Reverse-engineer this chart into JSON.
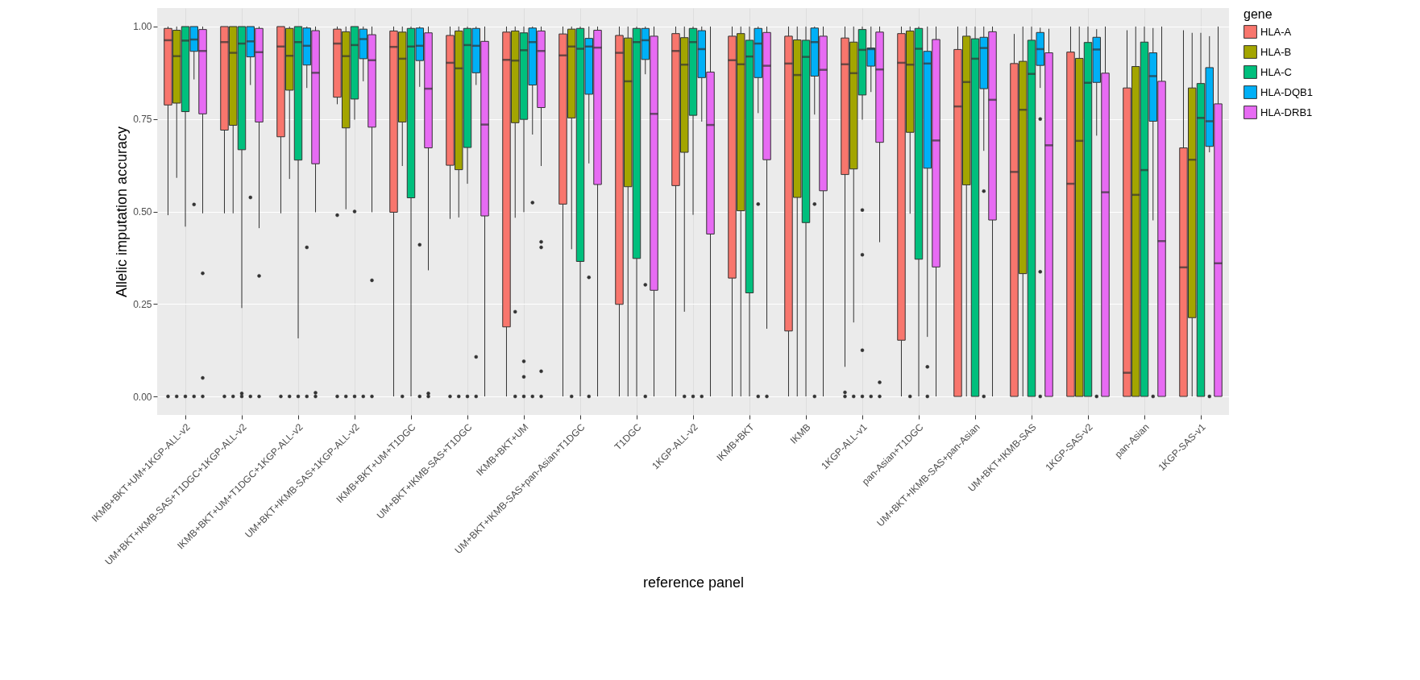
{
  "chart_data": {
    "type": "box",
    "xlabel": "reference panel",
    "ylabel": "Allelic imputation accuracy",
    "legend_title": "gene",
    "legend": "right",
    "grid": true,
    "ylim": [
      -0.05,
      1.05
    ],
    "yticks": [
      {
        "value": 0,
        "label": "0.00"
      },
      {
        "value": 0.25,
        "label": "0.25"
      },
      {
        "value": 0.5,
        "label": "0.50"
      },
      {
        "value": 0.75,
        "label": "0.75"
      },
      {
        "value": 1,
        "label": "1.00"
      }
    ],
    "categories": [
      "IKMB+BKT+UM+1KGP-ALL-v2",
      "UM+BKT+IKMB-SAS+T1DGC+1KGP-ALL-v2",
      "IKMB+BKT+UM+T1DGC+1KGP-ALL-v2",
      "UM+BKT+IKMB-SAS+1KGP-ALL-v2",
      "IKMB+BKT+UM+T1DGC",
      "UM+BKT+IKMB-SAS+T1DGC",
      "IKMB+BKT+UM",
      "UM+BKT+IKMB-SAS+pan-Asian+T1DGC",
      "T1DGC",
      "1KGP-ALL-v2",
      "IKMB+BKT",
      "IKMB",
      "1KGP-ALL-v1",
      "pan-Asian+T1DGC",
      "UM+BKT+IKMB-SAS+pan-Asian",
      "UM+BKT+IKMB-SAS",
      "1KGP-SAS-v2",
      "pan-Asian",
      "1KGP-SAS-v1"
    ],
    "series": [
      {
        "name": "HLA-A",
        "color": "#f8766d",
        "boxes": [
          {
            "low": 0.49,
            "q1": 0.788,
            "median": 0.963,
            "q3": 0.995,
            "high": 1,
            "outliers": [
              0
            ]
          },
          {
            "low": 0.495,
            "q1": 0.72,
            "median": 0.958,
            "q3": 1,
            "high": 1,
            "outliers": [
              0
            ]
          },
          {
            "low": 0.495,
            "q1": 0.702,
            "median": 0.946,
            "q3": 1,
            "high": 1,
            "outliers": [
              0
            ]
          },
          {
            "low": 0.79,
            "q1": 0.809,
            "median": 0.954,
            "q3": 0.993,
            "high": 1,
            "outliers": [
              0.49,
              0
            ]
          },
          {
            "low": 0,
            "q1": 0.498,
            "median": 0.945,
            "q3": 0.988,
            "high": 1
          },
          {
            "low": 0.48,
            "q1": 0.625,
            "median": 0.902,
            "q3": 0.976,
            "high": 1,
            "outliers": [
              0
            ]
          },
          {
            "low": 0,
            "q1": 0.188,
            "median": 0.91,
            "q3": 0.985,
            "high": 1
          },
          {
            "low": 0,
            "q1": 0.52,
            "median": 0.922,
            "q3": 0.98,
            "high": 1
          },
          {
            "low": 0,
            "q1": 0.249,
            "median": 0.929,
            "q3": 0.976,
            "high": 1
          },
          {
            "low": 0,
            "q1": 0.57,
            "median": 0.934,
            "q3": 0.981,
            "high": 1
          },
          {
            "low": 0,
            "q1": 0.32,
            "median": 0.909,
            "q3": 0.974,
            "high": 1
          },
          {
            "low": 0,
            "q1": 0.177,
            "median": 0.9,
            "q3": 0.974,
            "high": 1
          },
          {
            "low": 0.08,
            "q1": 0.6,
            "median": 0.898,
            "q3": 0.969,
            "high": 1,
            "outliers": [
              0.011,
              0
            ]
          },
          {
            "low": 0,
            "q1": 0.152,
            "median": 0.902,
            "q3": 0.981,
            "high": 1
          },
          {
            "low": 0,
            "q1": 0,
            "median": 0.784,
            "q3": 0.938,
            "high": 1
          },
          {
            "low": 0,
            "q1": 0,
            "median": 0.607,
            "q3": 0.9,
            "high": 0.98
          },
          {
            "low": 0,
            "q1": 0,
            "median": 0.575,
            "q3": 0.931,
            "high": 1
          },
          {
            "low": 0,
            "q1": 0,
            "median": 0.064,
            "q3": 0.834,
            "high": 0.99
          },
          {
            "low": 0,
            "q1": 0,
            "median": 0.349,
            "q3": 0.672,
            "high": 0.99
          }
        ]
      },
      {
        "name": "HLA-B",
        "color": "#a3a500",
        "boxes": [
          {
            "low": 0.591,
            "q1": 0.793,
            "median": 0.92,
            "q3": 0.99,
            "high": 1,
            "outliers": [
              0
            ]
          },
          {
            "low": 0.495,
            "q1": 0.733,
            "median": 0.929,
            "q3": 1,
            "high": 1,
            "outliers": [
              0
            ]
          },
          {
            "low": 0.588,
            "q1": 0.828,
            "median": 0.921,
            "q3": 0.995,
            "high": 1,
            "outliers": [
              0
            ]
          },
          {
            "low": 0.506,
            "q1": 0.726,
            "median": 0.92,
            "q3": 0.986,
            "high": 1,
            "outliers": [
              0
            ]
          },
          {
            "low": 0.623,
            "q1": 0.742,
            "median": 0.913,
            "q3": 0.985,
            "high": 1,
            "outliers": [
              0
            ]
          },
          {
            "low": 0.484,
            "q1": 0.613,
            "median": 0.887,
            "q3": 0.988,
            "high": 1,
            "outliers": [
              0
            ]
          },
          {
            "low": 0.483,
            "q1": 0.74,
            "median": 0.908,
            "q3": 0.988,
            "high": 1,
            "outliers": [
              0.229,
              0
            ]
          },
          {
            "low": 0.398,
            "q1": 0.753,
            "median": 0.946,
            "q3": 0.993,
            "high": 1,
            "outliers": [
              0
            ]
          },
          {
            "low": 0,
            "q1": 0.567,
            "median": 0.852,
            "q3": 0.969,
            "high": 1
          },
          {
            "low": 0.229,
            "q1": 0.66,
            "median": 0.897,
            "q3": 0.97,
            "high": 1,
            "outliers": [
              0
            ]
          },
          {
            "low": 0,
            "q1": 0.502,
            "median": 0.898,
            "q3": 0.981,
            "high": 1
          },
          {
            "low": 0,
            "q1": 0.538,
            "median": 0.869,
            "q3": 0.964,
            "high": 1
          },
          {
            "low": 0.2,
            "q1": 0.615,
            "median": 0.874,
            "q3": 0.958,
            "high": 1,
            "outliers": [
              0
            ]
          },
          {
            "low": 0.494,
            "q1": 0.714,
            "median": 0.897,
            "q3": 0.988,
            "high": 1,
            "outliers": [
              0
            ]
          },
          {
            "low": 0,
            "q1": 0.572,
            "median": 0.85,
            "q3": 0.974,
            "high": 1
          },
          {
            "low": 0,
            "q1": 0.332,
            "median": 0.775,
            "q3": 0.906,
            "high": 1
          },
          {
            "low": 0,
            "q1": 0,
            "median": 0.691,
            "q3": 0.914,
            "high": 1
          },
          {
            "low": 0,
            "q1": 0,
            "median": 0.545,
            "q3": 0.892,
            "high": 1
          },
          {
            "low": 0,
            "q1": 0.213,
            "median": 0.64,
            "q3": 0.834,
            "high": 0.983
          }
        ]
      },
      {
        "name": "HLA-C",
        "color": "#00bf7d",
        "boxes": [
          {
            "low": 0.459,
            "q1": 0.77,
            "median": 0.962,
            "q3": 1,
            "high": 1,
            "outliers": [
              0
            ]
          },
          {
            "low": 0.239,
            "q1": 0.667,
            "median": 0.954,
            "q3": 1,
            "high": 1,
            "outliers": [
              0.008,
              0
            ]
          },
          {
            "low": 0.157,
            "q1": 0.639,
            "median": 0.958,
            "q3": 1,
            "high": 1,
            "outliers": [
              0
            ]
          },
          {
            "low": 0.748,
            "q1": 0.804,
            "median": 0.95,
            "q3": 1,
            "high": 1,
            "outliers": [
              0.5,
              0
            ]
          },
          {
            "low": 0,
            "q1": 0.537,
            "median": 0.946,
            "q3": 0.995,
            "high": 1
          },
          {
            "low": 0.575,
            "q1": 0.673,
            "median": 0.95,
            "q3": 0.995,
            "high": 1,
            "outliers": [
              0
            ]
          },
          {
            "low": 0.498,
            "q1": 0.749,
            "median": 0.936,
            "q3": 0.983,
            "high": 1,
            "outliers": [
              0.095,
              0.053,
              0
            ]
          },
          {
            "low": 0,
            "q1": 0.365,
            "median": 0.94,
            "q3": 0.995,
            "high": 1
          },
          {
            "low": 0,
            "q1": 0.373,
            "median": 0.958,
            "q3": 0.995,
            "high": 1
          },
          {
            "low": 0.491,
            "q1": 0.76,
            "median": 0.958,
            "q3": 0.995,
            "high": 1,
            "outliers": [
              0
            ]
          },
          {
            "low": 0,
            "q1": 0.28,
            "median": 0.919,
            "q3": 0.963,
            "high": 1
          },
          {
            "low": 0,
            "q1": 0.47,
            "median": 0.918,
            "q3": 0.963,
            "high": 1
          },
          {
            "low": 0.748,
            "q1": 0.815,
            "median": 0.937,
            "q3": 0.992,
            "high": 1,
            "outliers": [
              0.504,
              0.383,
              0.125,
              0
            ]
          },
          {
            "low": 0,
            "q1": 0.371,
            "median": 0.94,
            "q3": 0.995,
            "high": 1
          },
          {
            "low": 0,
            "q1": 0,
            "median": 0.913,
            "q3": 0.967,
            "high": 1
          },
          {
            "low": 0,
            "q1": 0,
            "median": 0.872,
            "q3": 0.963,
            "high": 1
          },
          {
            "low": 0,
            "q1": 0,
            "median": 0.848,
            "q3": 0.957,
            "high": 1
          },
          {
            "low": 0,
            "q1": 0,
            "median": 0.612,
            "q3": 0.958,
            "high": 1
          },
          {
            "low": 0,
            "q1": 0,
            "median": 0.753,
            "q3": 0.846,
            "high": 0.983
          }
        ]
      },
      {
        "name": "HLA-DQB1",
        "color": "#00b0f6",
        "boxes": [
          {
            "low": 0.857,
            "q1": 0.933,
            "median": 0.965,
            "q3": 1,
            "high": 1,
            "outliers": [
              0.519,
              0
            ]
          },
          {
            "low": 0.842,
            "q1": 0.918,
            "median": 0.96,
            "q3": 1,
            "high": 1,
            "outliers": [
              0.538,
              0
            ]
          },
          {
            "low": 0.834,
            "q1": 0.896,
            "median": 0.948,
            "q3": 0.996,
            "high": 1,
            "outliers": [
              0.403,
              0
            ]
          },
          {
            "low": 0.852,
            "q1": 0.913,
            "median": 0.966,
            "q3": 0.993,
            "high": 1,
            "outliers": [
              0
            ]
          },
          {
            "low": 0.837,
            "q1": 0.908,
            "median": 0.948,
            "q3": 0.996,
            "high": 1,
            "outliers": [
              0.41,
              0
            ]
          },
          {
            "low": 0.842,
            "q1": 0.875,
            "median": 0.948,
            "q3": 0.995,
            "high": 1,
            "outliers": [
              0.107,
              0
            ]
          },
          {
            "low": 0.708,
            "q1": 0.842,
            "median": 0.958,
            "q3": 0.996,
            "high": 1,
            "outliers": [
              0.524,
              0
            ]
          },
          {
            "low": 0.63,
            "q1": 0.817,
            "median": 0.946,
            "q3": 0.968,
            "high": 1,
            "outliers": [
              0.322,
              0
            ]
          },
          {
            "low": 0.871,
            "q1": 0.911,
            "median": 0.963,
            "q3": 0.995,
            "high": 1,
            "outliers": [
              0.302,
              0
            ]
          },
          {
            "low": 0.743,
            "q1": 0.862,
            "median": 0.939,
            "q3": 0.989,
            "high": 1,
            "outliers": [
              0
            ]
          },
          {
            "low": 0.766,
            "q1": 0.862,
            "median": 0.954,
            "q3": 0.995,
            "high": 1,
            "outliers": [
              0.52,
              0
            ]
          },
          {
            "low": 0.762,
            "q1": 0.866,
            "median": 0.958,
            "q3": 0.996,
            "high": 1,
            "outliers": [
              0.52,
              0
            ]
          },
          {
            "low": 0.823,
            "q1": 0.893,
            "median": 0.939,
            "q3": 0.942,
            "high": 1,
            "outliers": [
              0
            ]
          },
          {
            "low": 0.161,
            "q1": 0.617,
            "median": 0.9,
            "q3": 0.933,
            "high": 1,
            "outliers": [
              0.08,
              0
            ]
          },
          {
            "low": 0.664,
            "q1": 0.832,
            "median": 0.942,
            "q3": 0.971,
            "high": 1,
            "outliers": [
              0.555,
              0
            ]
          },
          {
            "low": 0.834,
            "q1": 0.895,
            "median": 0.939,
            "q3": 0.984,
            "high": 0.997,
            "outliers": [
              0.75,
              0.337,
              0
            ]
          },
          {
            "low": 0.705,
            "q1": 0.849,
            "median": 0.938,
            "q3": 0.971,
            "high": 0.993,
            "outliers": [
              0
            ]
          },
          {
            "low": 0.476,
            "q1": 0.744,
            "median": 0.866,
            "q3": 0.929,
            "high": 0.996,
            "outliers": [
              0
            ]
          },
          {
            "low": 0.66,
            "q1": 0.676,
            "median": 0.744,
            "q3": 0.889,
            "high": 0.974,
            "outliers": [
              0
            ]
          }
        ]
      },
      {
        "name": "HLA-DRB1",
        "color": "#e76bf3",
        "boxes": [
          {
            "low": 0.495,
            "q1": 0.764,
            "median": 0.934,
            "q3": 0.992,
            "high": 1,
            "outliers": [
              0.333,
              0.05,
              0
            ]
          },
          {
            "low": 0.455,
            "q1": 0.742,
            "median": 0.931,
            "q3": 0.995,
            "high": 1,
            "outliers": [
              0.326,
              0
            ]
          },
          {
            "low": 0.498,
            "q1": 0.629,
            "median": 0.875,
            "q3": 0.989,
            "high": 1,
            "outliers": [
              0.01,
              0
            ]
          },
          {
            "low": 0.498,
            "q1": 0.728,
            "median": 0.909,
            "q3": 0.978,
            "high": 1,
            "outliers": [
              0.314,
              0
            ]
          },
          {
            "low": 0.341,
            "q1": 0.672,
            "median": 0.832,
            "q3": 0.983,
            "high": 1,
            "outliers": [
              0.008,
              0
            ]
          },
          {
            "low": 0,
            "q1": 0.488,
            "median": 0.735,
            "q3": 0.96,
            "high": 1
          },
          {
            "low": 0.623,
            "q1": 0.781,
            "median": 0.934,
            "q3": 0.988,
            "high": 1,
            "outliers": [
              0.418,
              0.403,
              0.068,
              0
            ]
          },
          {
            "low": 0,
            "q1": 0.573,
            "median": 0.943,
            "q3": 0.99,
            "high": 1
          },
          {
            "low": 0,
            "q1": 0.287,
            "median": 0.764,
            "q3": 0.974,
            "high": 1
          },
          {
            "low": 0,
            "q1": 0.439,
            "median": 0.734,
            "q3": 0.877,
            "high": 1
          },
          {
            "low": 0.183,
            "q1": 0.64,
            "median": 0.894,
            "q3": 0.984,
            "high": 1,
            "outliers": [
              0
            ]
          },
          {
            "low": 0,
            "q1": 0.556,
            "median": 0.883,
            "q3": 0.974,
            "high": 1
          },
          {
            "low": 0.417,
            "q1": 0.687,
            "median": 0.884,
            "q3": 0.985,
            "high": 1,
            "outliers": [
              0.038,
              0
            ]
          },
          {
            "low": 0,
            "q1": 0.35,
            "median": 0.692,
            "q3": 0.965,
            "high": 1
          },
          {
            "low": 0,
            "q1": 0.477,
            "median": 0.802,
            "q3": 0.986,
            "high": 1
          },
          {
            "low": 0,
            "q1": 0,
            "median": 0.679,
            "q3": 0.929,
            "high": 0.994
          },
          {
            "low": 0,
            "q1": 0,
            "median": 0.552,
            "q3": 0.874,
            "high": 1
          },
          {
            "low": 0,
            "q1": 0,
            "median": 0.42,
            "q3": 0.852,
            "high": 1
          },
          {
            "low": 0,
            "q1": 0,
            "median": 0.36,
            "q3": 0.791,
            "high": 1
          }
        ]
      }
    ]
  }
}
